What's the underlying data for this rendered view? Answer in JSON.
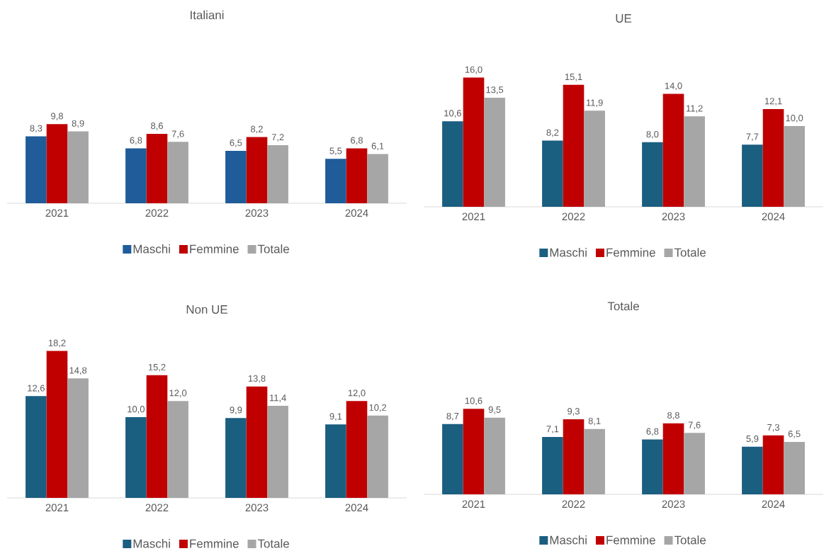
{
  "chart_data": [
    {
      "type": "bar",
      "title": "Italiani",
      "categories": [
        "2021",
        "2022",
        "2023",
        "2024"
      ],
      "tick_labels": "x",
      "legend": "bottom",
      "series": [
        {
          "name": "Maschi",
          "color": "#1f5c99",
          "values": [
            8.3,
            6.8,
            6.5,
            5.5
          ],
          "value_labels": [
            "8,3",
            "6,8",
            "6,5",
            "5,5"
          ]
        },
        {
          "name": "Femmine",
          "color": "#c00000",
          "values": [
            9.8,
            8.6,
            8.2,
            6.8
          ],
          "value_labels": [
            "9,8",
            "8,6",
            "8,2",
            "6,8"
          ]
        },
        {
          "name": "Totale",
          "color": "#a6a6a6",
          "values": [
            8.9,
            7.6,
            7.2,
            6.1
          ],
          "value_labels": [
            "8,9",
            "7,6",
            "7,2",
            "6,1"
          ]
        }
      ]
    },
    {
      "type": "bar",
      "title": "UE",
      "categories": [
        "2021",
        "2022",
        "2023",
        "2024"
      ],
      "tick_labels": "x",
      "legend": "bottom",
      "series": [
        {
          "name": "Maschi",
          "color": "#1a5e80",
          "values": [
            10.6,
            8.2,
            8.0,
            7.7
          ],
          "value_labels": [
            "10,6",
            "8,2",
            "8,0",
            "7,7"
          ]
        },
        {
          "name": "Femmine",
          "color": "#c00000",
          "values": [
            16.0,
            15.1,
            14.0,
            12.1
          ],
          "value_labels": [
            "16,0",
            "15,1",
            "14,0",
            "12,1"
          ]
        },
        {
          "name": "Totale",
          "color": "#a6a6a6",
          "values": [
            13.5,
            11.9,
            11.2,
            10.0
          ],
          "value_labels": [
            "13,5",
            "11,9",
            "11,2",
            "10,0"
          ]
        }
      ]
    },
    {
      "type": "bar",
      "title": "Non UE",
      "categories": [
        "2021",
        "2022",
        "2023",
        "2024"
      ],
      "tick_labels": "x",
      "legend": "bottom",
      "series": [
        {
          "name": "Maschi",
          "color": "#1a5e80",
          "values": [
            12.6,
            10.0,
            9.9,
            9.1
          ],
          "value_labels": [
            "12,6",
            "10,0",
            "9,9",
            "9,1"
          ]
        },
        {
          "name": "Femmine",
          "color": "#c00000",
          "values": [
            18.2,
            15.2,
            13.8,
            12.0
          ],
          "value_labels": [
            "18,2",
            "15,2",
            "13,8",
            "12,0"
          ]
        },
        {
          "name": "Totale",
          "color": "#a6a6a6",
          "values": [
            14.8,
            12.0,
            11.4,
            10.2
          ],
          "value_labels": [
            "14,8",
            "12,0",
            "11,4",
            "10,2"
          ]
        }
      ]
    },
    {
      "type": "bar",
      "title": "Totale",
      "categories": [
        "2021",
        "2022",
        "2023",
        "2024"
      ],
      "tick_labels": "x",
      "legend": "bottom",
      "series": [
        {
          "name": "Maschi",
          "color": "#1a5e80",
          "values": [
            8.7,
            7.1,
            6.8,
            5.9
          ],
          "value_labels": [
            "8,7",
            "7,1",
            "6,8",
            "5,9"
          ]
        },
        {
          "name": "Femmine",
          "color": "#c00000",
          "values": [
            10.6,
            9.3,
            8.8,
            7.3
          ],
          "value_labels": [
            "10,6",
            "9,3",
            "8,8",
            "7,3"
          ]
        },
        {
          "name": "Totale",
          "color": "#a6a6a6",
          "values": [
            9.5,
            8.1,
            7.6,
            6.5
          ],
          "value_labels": [
            "9,5",
            "8,1",
            "7,6",
            "6,5"
          ]
        }
      ]
    }
  ]
}
